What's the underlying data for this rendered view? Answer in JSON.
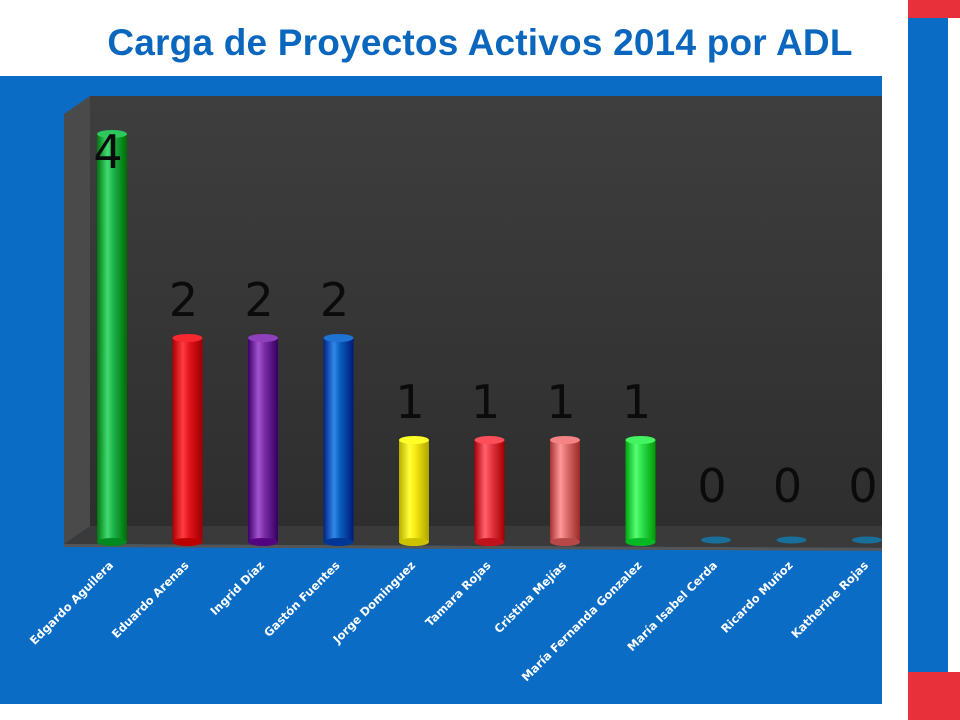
{
  "title": "Carga de Proyectos Activos 2014 por ADL",
  "chart_data": {
    "type": "bar",
    "title": "Carga de Proyectos Activos 2014 por ADL",
    "categories": [
      "Edgardo Aguilera",
      "Eduardo Arenas",
      "Ingrid Díaz",
      "Gastón Fuentes",
      "Jorge Dominguez",
      "Tamara Rojas",
      "Cristina Mejías",
      "María Fernanda Gonzalez",
      "María Isabel Cerda",
      "Ricardo Muñoz",
      "Katherine Rojas"
    ],
    "values": [
      4,
      2,
      2,
      2,
      1,
      1,
      1,
      1,
      0,
      0,
      0
    ],
    "colors": [
      "#1bb24a",
      "#e4141c",
      "#7a2da6",
      "#0a5fbf",
      "#f5ea12",
      "#e83a45",
      "#e07070",
      "#2ee04c",
      "#1a6e9a",
      "#1a6e9a",
      "#1a6e9a"
    ],
    "ylim": [
      0,
      4
    ],
    "grid": false,
    "legend": "none",
    "style": "3d-cylinder"
  }
}
